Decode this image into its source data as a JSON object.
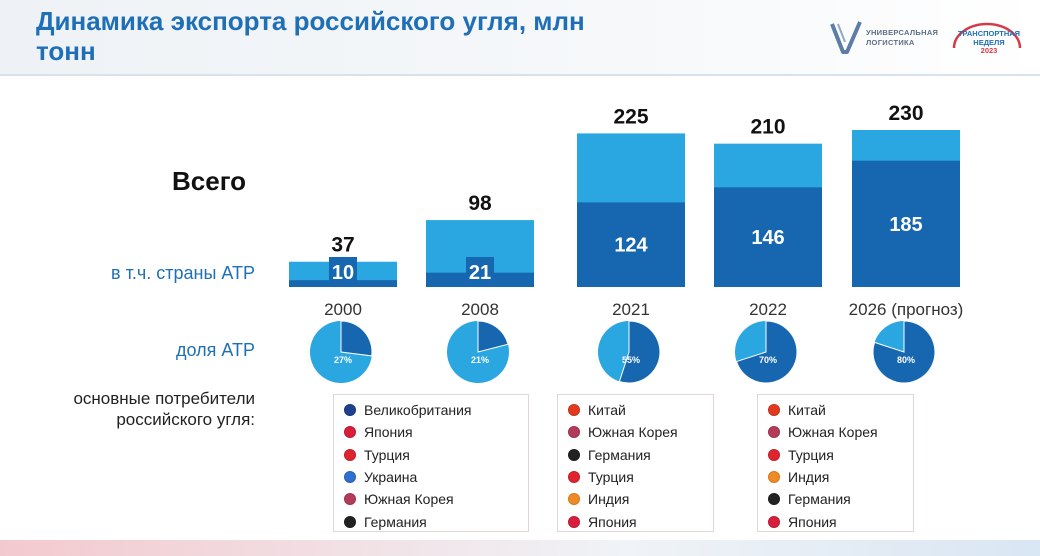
{
  "header": {
    "title": "Динамика экспорта российского угля, млн тонн",
    "logo1_line1": "УНИВЕРСАЛЬНАЯ",
    "logo1_line2": "ЛОГИСТИКА",
    "logo2_line1": "ТРАНСПОРТНАЯ",
    "logo2_line2": "НЕДЕЛЯ",
    "logo2_year": "2023"
  },
  "labels": {
    "total": "Всего",
    "apr": "в т.ч. страны АТР",
    "share": "доля АТР",
    "consumers": "основные потребители российского угля:"
  },
  "colors": {
    "total": "#2aa7e0",
    "apr": "#1767b0",
    "pie_bg": "#2aa7e0",
    "pie_fg": "#1767b0",
    "title": "#1f6fb7"
  },
  "chart_data": {
    "type": "bar",
    "title": "Динамика экспорта российского угля, млн тонн",
    "categories": [
      "2000",
      "2008",
      "2021",
      "2022",
      "2026 (прогноз)"
    ],
    "series": [
      {
        "name": "Всего",
        "values": [
          37,
          98,
          225,
          210,
          230
        ]
      },
      {
        "name": "в т.ч. страны АТР",
        "values": [
          10,
          21,
          124,
          146,
          185
        ]
      }
    ],
    "share": {
      "name": "доля АТР",
      "values": [
        27,
        21,
        55,
        70,
        80
      ],
      "labels": [
        "27%",
        "21%",
        "55%",
        "70%",
        "80%"
      ]
    },
    "ylim": [
      0,
      230
    ],
    "xlabel": "",
    "ylabel": ""
  },
  "consumers": [
    {
      "items": [
        {
          "name": "Великобритания",
          "icon": "uk-flag-icon",
          "color": "#1f3f8f"
        },
        {
          "name": "Япония",
          "icon": "japan-flag-icon",
          "color": "#d81e3a"
        },
        {
          "name": "Турция",
          "icon": "turkey-flag-icon",
          "color": "#e0242f"
        },
        {
          "name": "Украина",
          "icon": "ukraine-flag-icon",
          "color": "#2f6fcf"
        },
        {
          "name": "Южная Корея",
          "icon": "south-korea-flag-icon",
          "color": "#b43a5a"
        },
        {
          "name": "Германия",
          "icon": "germany-flag-icon",
          "color": "#222222"
        }
      ]
    },
    {
      "items": [
        {
          "name": "Китай",
          "icon": "china-flag-icon",
          "color": "#e23a1e"
        },
        {
          "name": "Южная Корея",
          "icon": "south-korea-flag-icon",
          "color": "#b43a5a"
        },
        {
          "name": "Германия",
          "icon": "germany-flag-icon",
          "color": "#222222"
        },
        {
          "name": "Турция",
          "icon": "turkey-flag-icon",
          "color": "#e0242f"
        },
        {
          "name": "Индия",
          "icon": "india-flag-icon",
          "color": "#f08a24"
        },
        {
          "name": "Япония",
          "icon": "japan-flag-icon",
          "color": "#d81e3a"
        }
      ]
    },
    {
      "items": [
        {
          "name": "Китай",
          "icon": "china-flag-icon",
          "color": "#e23a1e"
        },
        {
          "name": "Южная Корея",
          "icon": "south-korea-flag-icon",
          "color": "#b43a5a"
        },
        {
          "name": "Турция",
          "icon": "turkey-flag-icon",
          "color": "#e0242f"
        },
        {
          "name": "Индия",
          "icon": "india-flag-icon",
          "color": "#f08a24"
        },
        {
          "name": "Германия",
          "icon": "germany-flag-icon",
          "color": "#222222"
        },
        {
          "name": "Япония",
          "icon": "japan-flag-icon",
          "color": "#d81e3a"
        }
      ]
    }
  ]
}
